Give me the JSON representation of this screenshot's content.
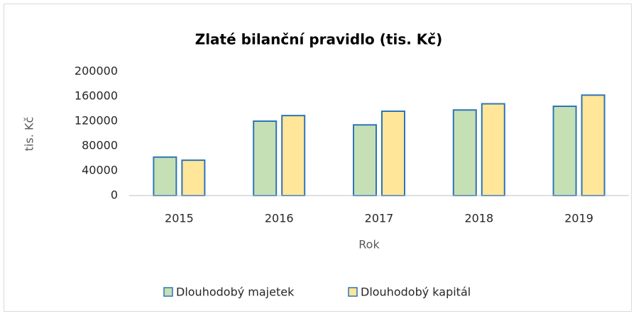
{
  "chart_data": {
    "type": "bar",
    "title": "Zlaté bilanční pravidlo (tis. Kč)",
    "x_label": "Rok",
    "y_label": "tis. Kč",
    "categories": [
      "2015",
      "2016",
      "2017",
      "2018",
      "2019"
    ],
    "series": [
      {
        "name": "Dlouhodobý majetek",
        "color": "#c5e0b4",
        "values": [
          62000,
          120000,
          114000,
          138000,
          144000
        ]
      },
      {
        "name": "Dlouhodobý kapitál",
        "color": "#ffe699",
        "values": [
          57000,
          129000,
          136000,
          148000,
          162000
        ]
      }
    ],
    "ylim": [
      0,
      200000
    ],
    "yticks": [
      0,
      40000,
      80000,
      120000,
      160000,
      200000
    ],
    "grid": false,
    "legend": "bottom",
    "edge_color": "#2e75b6"
  }
}
